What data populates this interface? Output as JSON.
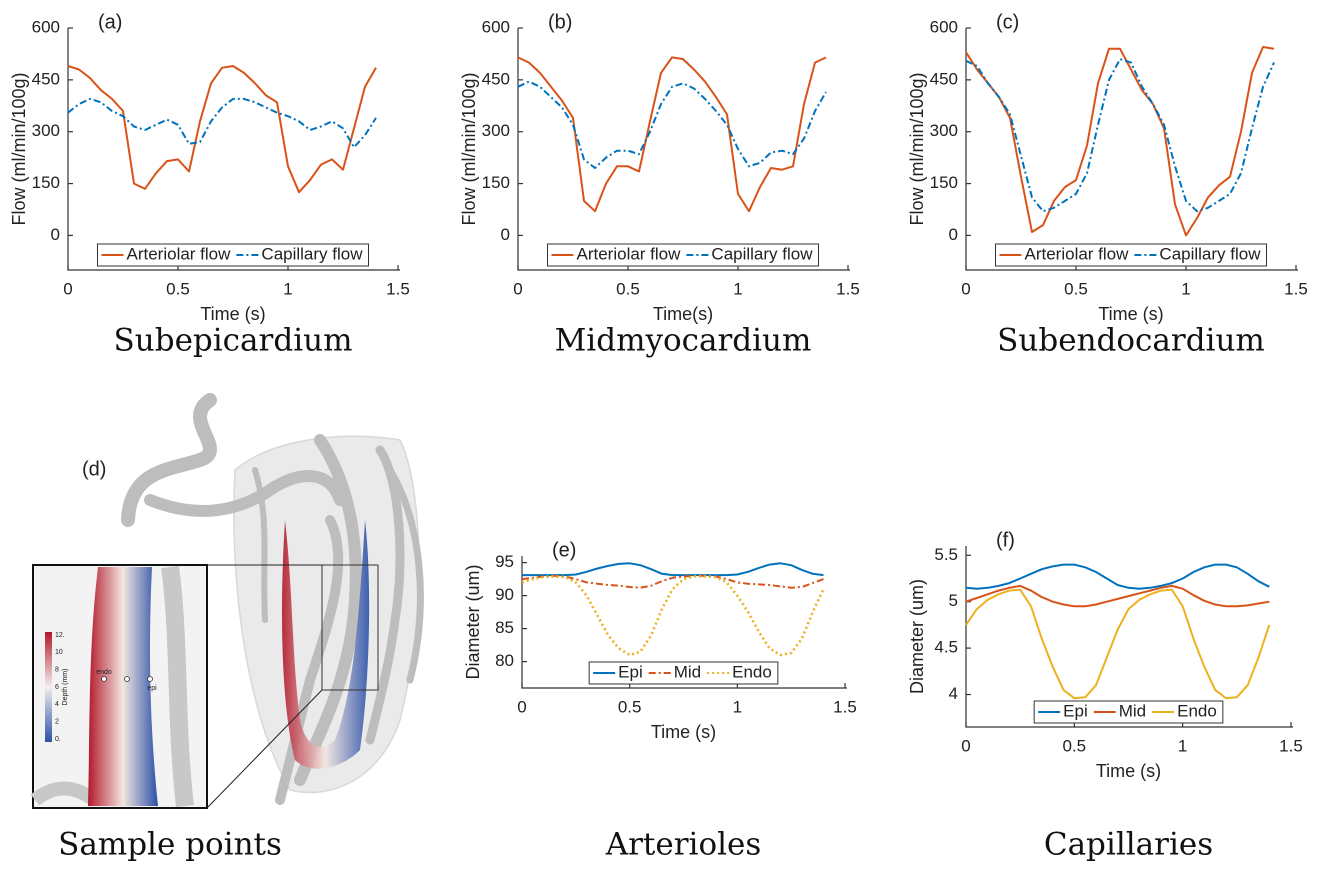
{
  "chart_data": [
    {
      "type": "line",
      "panel_label": "(a)",
      "caption": "Subepicardium",
      "x_label": "Time (s)",
      "y_label": "Flow (ml/min/100g)",
      "xlim": [
        0,
        1.5
      ],
      "xticks": [
        0,
        0.5,
        1,
        1.5
      ],
      "ylim": [
        -100,
        600
      ],
      "yticks": [
        0,
        150,
        300,
        450,
        600
      ],
      "legend": "bottom",
      "x": [
        0,
        0.05,
        0.1,
        0.15,
        0.2,
        0.25,
        0.3,
        0.35,
        0.4,
        0.45,
        0.5,
        0.55,
        0.6,
        0.65,
        0.7,
        0.75,
        0.8,
        0.85,
        0.9,
        0.95,
        1.0,
        1.05,
        1.1,
        1.15,
        1.2,
        1.25,
        1.3,
        1.35,
        1.4
      ],
      "series": [
        {
          "name": "Arteriolar flow",
          "color": "#d95319",
          "style": "solid",
          "values": [
            490,
            480,
            455,
            420,
            395,
            360,
            150,
            135,
            180,
            215,
            220,
            185,
            330,
            440,
            485,
            490,
            470,
            440,
            405,
            385,
            200,
            125,
            160,
            205,
            220,
            190,
            310,
            430,
            485
          ]
        },
        {
          "name": "Capillary flow",
          "color": "#0072bd",
          "style": "dashdot",
          "values": [
            355,
            380,
            395,
            385,
            360,
            345,
            315,
            305,
            320,
            335,
            320,
            265,
            270,
            330,
            370,
            395,
            395,
            385,
            370,
            355,
            345,
            330,
            305,
            315,
            330,
            310,
            255,
            290,
            340
          ]
        }
      ]
    },
    {
      "type": "line",
      "panel_label": "(b)",
      "caption": "Midmyocardium",
      "x_label": "Time(s)",
      "y_label": "Flow (ml/min/100g)",
      "xlim": [
        0,
        1.5
      ],
      "xticks": [
        0,
        0.5,
        1,
        1.5
      ],
      "ylim": [
        -100,
        600
      ],
      "yticks": [
        0,
        150,
        300,
        450,
        600
      ],
      "legend": "bottom",
      "x": [
        0,
        0.05,
        0.1,
        0.15,
        0.2,
        0.25,
        0.3,
        0.35,
        0.4,
        0.45,
        0.5,
        0.55,
        0.6,
        0.65,
        0.7,
        0.75,
        0.8,
        0.85,
        0.9,
        0.95,
        1.0,
        1.05,
        1.1,
        1.15,
        1.2,
        1.25,
        1.3,
        1.35,
        1.4
      ],
      "series": [
        {
          "name": "Arteriolar flow",
          "color": "#d95319",
          "style": "solid",
          "values": [
            515,
            500,
            470,
            430,
            390,
            340,
            100,
            70,
            150,
            200,
            200,
            185,
            330,
            470,
            515,
            510,
            480,
            445,
            400,
            350,
            120,
            70,
            140,
            195,
            190,
            200,
            380,
            500,
            515
          ]
        },
        {
          "name": "Capillary flow",
          "color": "#0072bd",
          "style": "dashdot",
          "values": [
            430,
            445,
            430,
            400,
            370,
            320,
            220,
            195,
            225,
            245,
            245,
            235,
            300,
            380,
            430,
            440,
            425,
            395,
            360,
            320,
            250,
            200,
            210,
            240,
            245,
            235,
            280,
            360,
            415
          ]
        }
      ]
    },
    {
      "type": "line",
      "panel_label": "(c)",
      "caption": "Subendocardium",
      "x_label": "Time (s)",
      "y_label": "Flow (ml/min/100g)",
      "xlim": [
        0,
        1.5
      ],
      "xticks": [
        0,
        0.5,
        1,
        1.5
      ],
      "ylim": [
        -100,
        600
      ],
      "yticks": [
        0,
        150,
        300,
        450,
        600
      ],
      "legend": "bottom",
      "x": [
        0,
        0.05,
        0.1,
        0.15,
        0.2,
        0.25,
        0.3,
        0.35,
        0.4,
        0.45,
        0.5,
        0.55,
        0.6,
        0.65,
        0.7,
        0.75,
        0.8,
        0.85,
        0.9,
        0.95,
        1.0,
        1.05,
        1.1,
        1.15,
        1.2,
        1.25,
        1.3,
        1.35,
        1.4
      ],
      "series": [
        {
          "name": "Arteriolar flow",
          "color": "#d95319",
          "style": "solid",
          "values": [
            530,
            480,
            440,
            400,
            340,
            170,
            10,
            30,
            100,
            140,
            160,
            260,
            440,
            540,
            540,
            480,
            420,
            380,
            310,
            90,
            0,
            50,
            110,
            145,
            170,
            300,
            470,
            545,
            540
          ]
        },
        {
          "name": "Capillary flow",
          "color": "#0072bd",
          "style": "dashdot",
          "values": [
            505,
            490,
            440,
            400,
            350,
            230,
            110,
            70,
            80,
            100,
            120,
            180,
            320,
            450,
            510,
            500,
            430,
            380,
            320,
            200,
            100,
            70,
            80,
            100,
            120,
            180,
            310,
            430,
            500
          ]
        }
      ]
    },
    {
      "type": "line",
      "panel_label": "(e)",
      "caption": "Arterioles",
      "x_label": "Time (s)",
      "y_label": "Diameter (um)",
      "xlim": [
        0,
        1.5
      ],
      "xticks": [
        0,
        0.5,
        1,
        1.5
      ],
      "ylim": [
        76,
        96
      ],
      "yticks": [
        80,
        85,
        90,
        95
      ],
      "legend": "bottom",
      "x": [
        0,
        0.05,
        0.1,
        0.15,
        0.2,
        0.25,
        0.3,
        0.35,
        0.4,
        0.45,
        0.5,
        0.55,
        0.6,
        0.65,
        0.7,
        0.75,
        0.8,
        0.85,
        0.9,
        0.95,
        1.0,
        1.05,
        1.1,
        1.15,
        1.2,
        1.25,
        1.3,
        1.35,
        1.4
      ],
      "series": [
        {
          "name": "Epi",
          "color": "#0072bd",
          "style": "solid",
          "values": [
            93.1,
            93.1,
            93.1,
            93.1,
            93.1,
            93.2,
            93.6,
            94.1,
            94.5,
            94.8,
            94.9,
            94.6,
            94.0,
            93.3,
            93.1,
            93.1,
            93.1,
            93.1,
            93.1,
            93.1,
            93.2,
            93.6,
            94.2,
            94.7,
            94.9,
            94.6,
            93.9,
            93.3,
            93.1
          ]
        },
        {
          "name": "Mid",
          "color": "#d95319",
          "style": "dashdot",
          "values": [
            92.5,
            92.7,
            92.9,
            93.0,
            92.9,
            92.5,
            92.0,
            91.8,
            91.6,
            91.5,
            91.3,
            91.2,
            91.5,
            92.2,
            92.7,
            92.9,
            93.0,
            93.0,
            92.9,
            92.5,
            92.0,
            91.8,
            91.7,
            91.6,
            91.4,
            91.2,
            91.3,
            91.9,
            92.5
          ]
        },
        {
          "name": "Endo",
          "color": "#edb120",
          "style": "dotted",
          "values": [
            92.0,
            92.5,
            92.8,
            92.9,
            92.8,
            92.0,
            90.0,
            87.0,
            84.0,
            82.0,
            81.0,
            81.5,
            84.0,
            88.0,
            91.0,
            92.5,
            92.9,
            92.9,
            92.8,
            92.0,
            90.0,
            87.5,
            84.5,
            82.0,
            81.0,
            81.3,
            83.5,
            87.5,
            91.0
          ]
        }
      ]
    },
    {
      "type": "line",
      "panel_label": "(f)",
      "caption": "Capillaries",
      "x_label": "Time (s)",
      "y_label": "Diameter (um)",
      "xlim": [
        0,
        1.5
      ],
      "xticks": [
        0,
        0.5,
        1,
        1.5
      ],
      "ylim": [
        3.65,
        5.6
      ],
      "yticks": [
        4,
        4.5,
        5,
        5.5
      ],
      "legend": "bottom",
      "x": [
        0,
        0.05,
        0.1,
        0.15,
        0.2,
        0.25,
        0.3,
        0.35,
        0.4,
        0.45,
        0.5,
        0.55,
        0.6,
        0.65,
        0.7,
        0.75,
        0.8,
        0.85,
        0.9,
        0.95,
        1.0,
        1.05,
        1.1,
        1.15,
        1.2,
        1.25,
        1.3,
        1.35,
        1.4
      ],
      "series": [
        {
          "name": "Epi",
          "color": "#0072bd",
          "style": "solid",
          "values": [
            5.15,
            5.14,
            5.15,
            5.17,
            5.2,
            5.25,
            5.3,
            5.35,
            5.38,
            5.4,
            5.4,
            5.37,
            5.32,
            5.25,
            5.18,
            5.15,
            5.14,
            5.15,
            5.17,
            5.2,
            5.25,
            5.32,
            5.37,
            5.4,
            5.4,
            5.37,
            5.3,
            5.22,
            5.16
          ]
        },
        {
          "name": "Mid",
          "color": "#d95319",
          "style": "solid",
          "values": [
            5.0,
            5.04,
            5.08,
            5.12,
            5.15,
            5.17,
            5.12,
            5.05,
            5.0,
            4.97,
            4.95,
            4.95,
            4.97,
            5.0,
            5.03,
            5.06,
            5.09,
            5.12,
            5.15,
            5.17,
            5.14,
            5.07,
            5.01,
            4.97,
            4.95,
            4.95,
            4.96,
            4.98,
            5.0
          ]
        },
        {
          "name": "Endo",
          "color": "#edb120",
          "style": "solid",
          "values": [
            4.75,
            4.92,
            5.02,
            5.08,
            5.12,
            5.13,
            4.95,
            4.6,
            4.3,
            4.05,
            3.96,
            3.97,
            4.1,
            4.4,
            4.7,
            4.92,
            5.02,
            5.08,
            5.12,
            5.13,
            4.95,
            4.6,
            4.3,
            4.05,
            3.96,
            3.97,
            4.1,
            4.4,
            4.75
          ]
        }
      ]
    }
  ],
  "sample_panel": {
    "panel_label": "(d)",
    "caption": "Sample points",
    "colorbar_title": "Depth (mm)",
    "colorbar_labels": [
      "12.",
      "10",
      "8",
      "6",
      "4",
      "2",
      "0."
    ],
    "points": [
      "endo",
      "epi"
    ]
  }
}
